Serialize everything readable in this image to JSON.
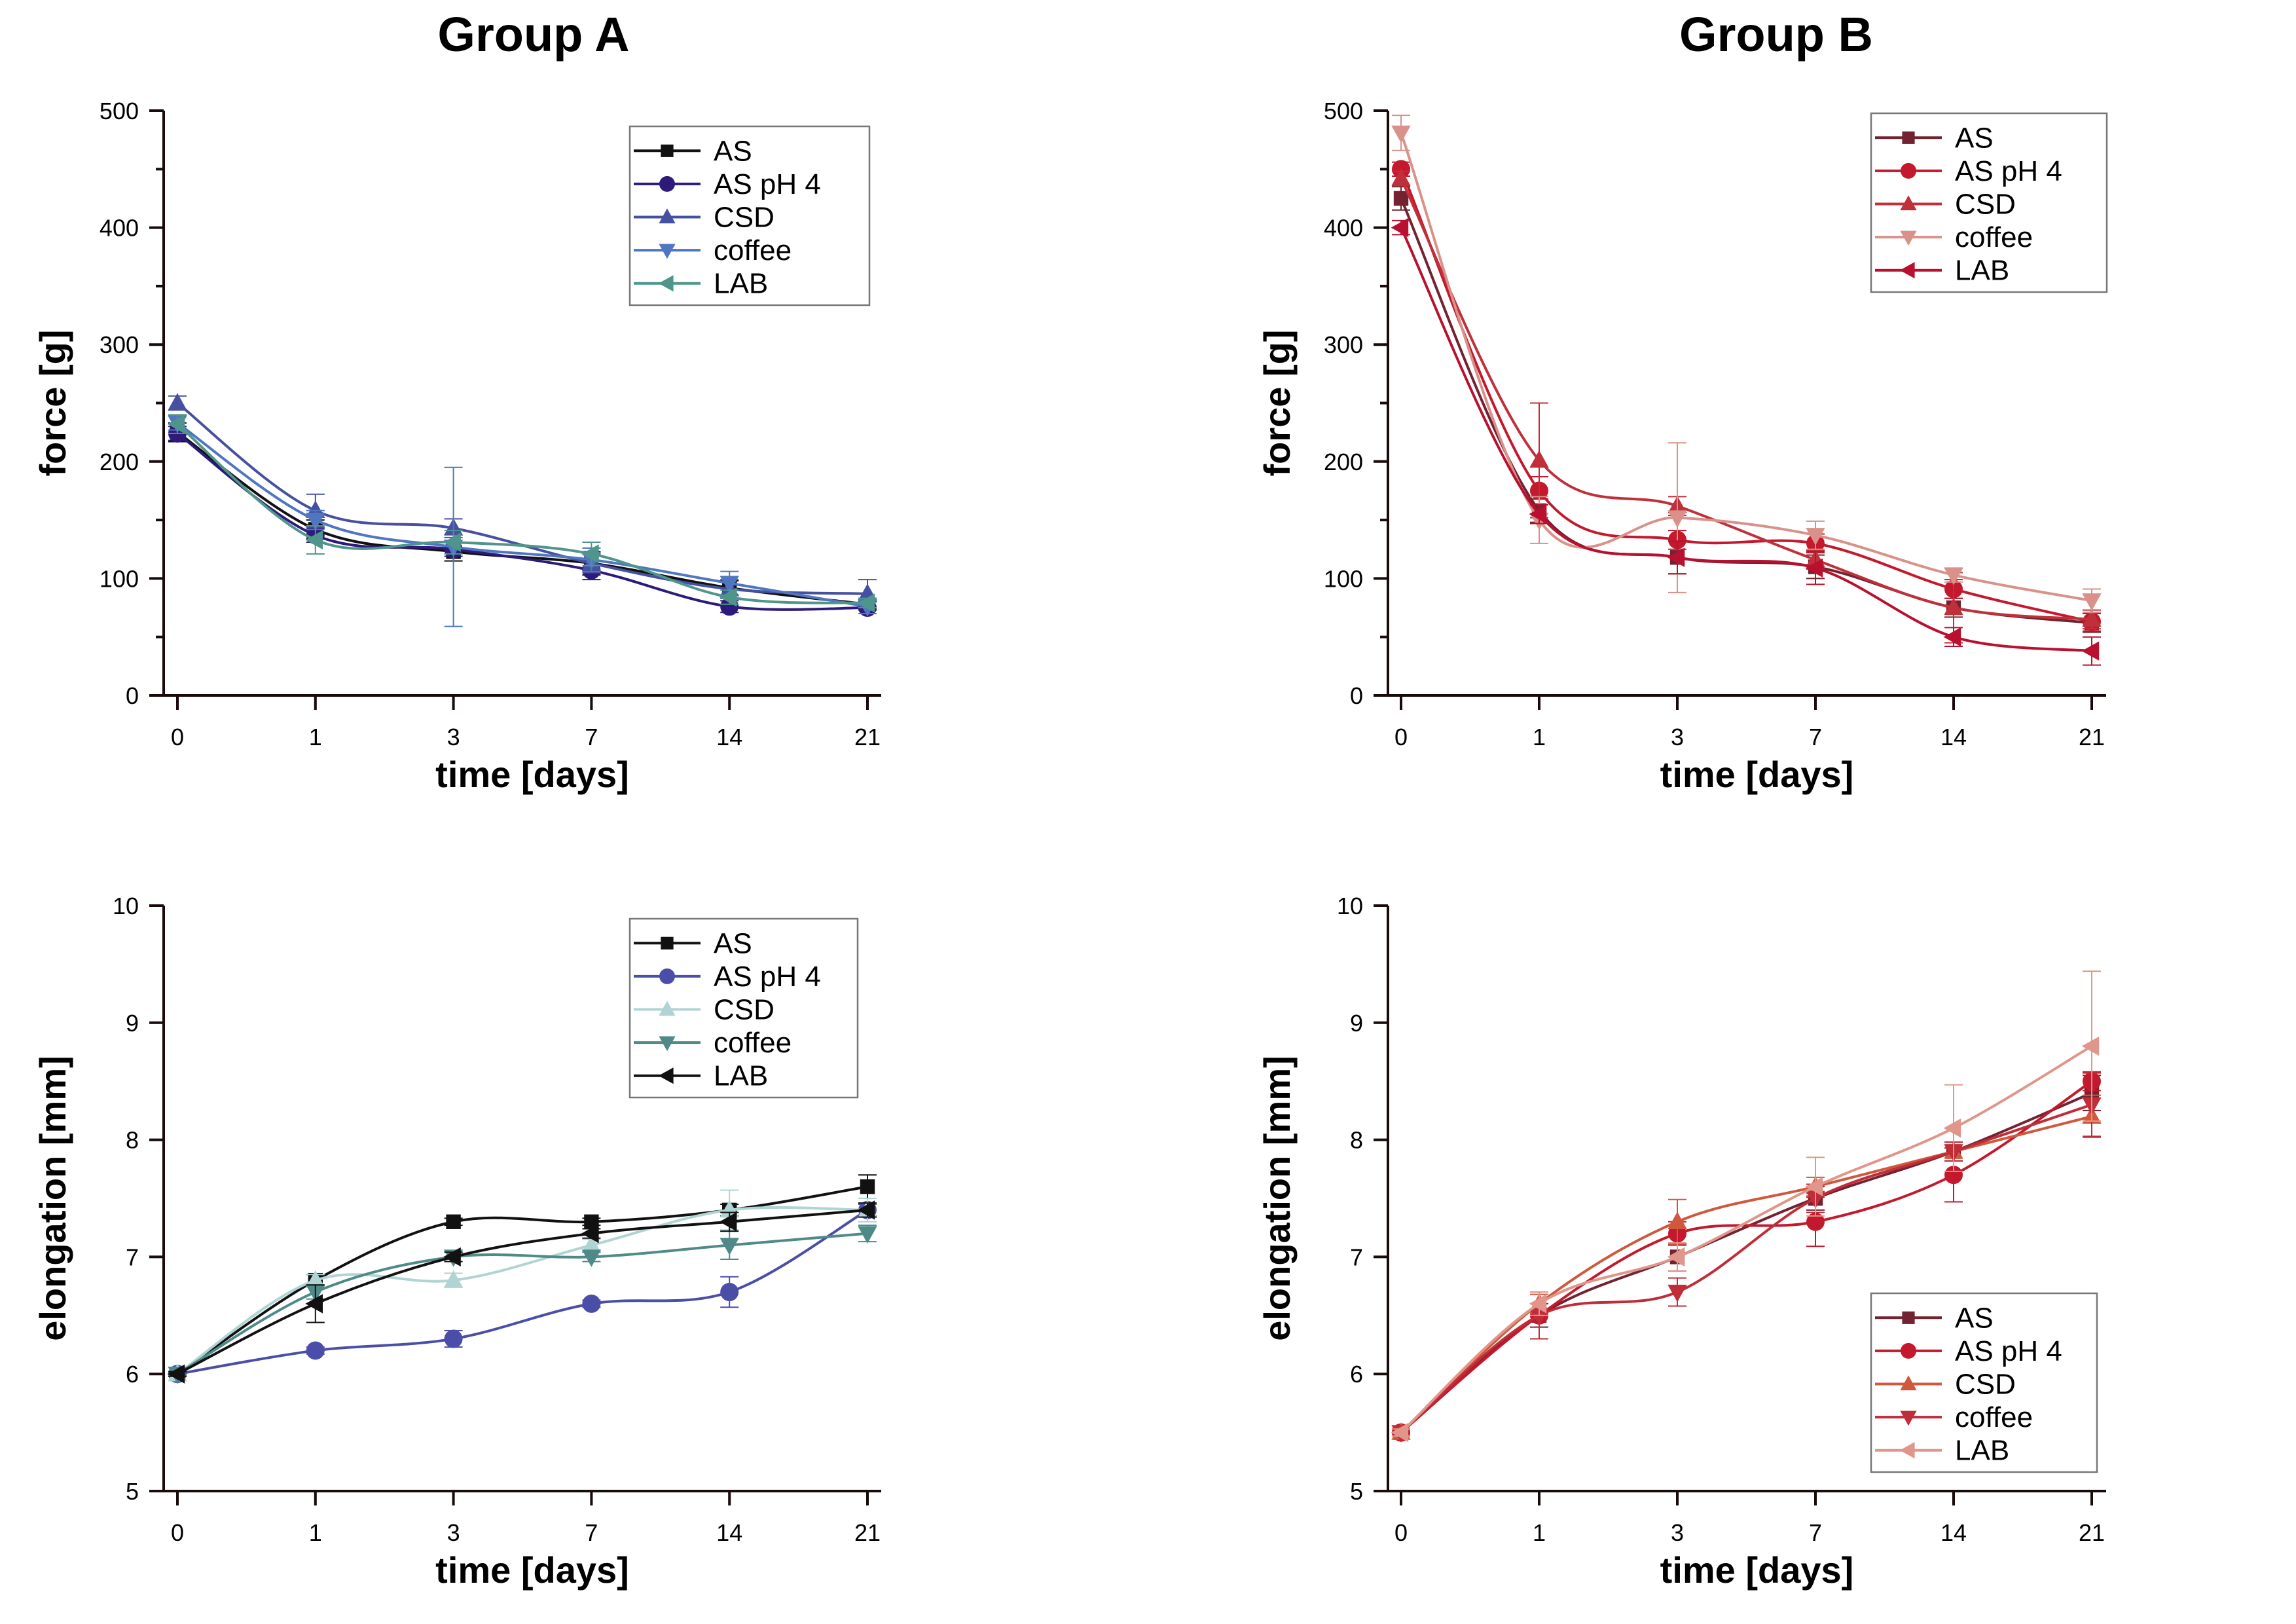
{
  "figure": {
    "group_titles": [
      "Group A",
      "Group B"
    ]
  },
  "chart_data": [
    {
      "id": "groupA-force",
      "group": "Group A",
      "type": "line",
      "title": "",
      "xlabel": "time [days]",
      "ylabel": "force [g]",
      "x": [
        "0",
        "1",
        "3",
        "7",
        "14",
        "21"
      ],
      "ylim": [
        0,
        500
      ],
      "yticks": [
        0,
        100,
        200,
        300,
        400,
        500
      ],
      "yminor_step": 50,
      "grid": false,
      "legend_position": "top-right",
      "series": [
        {
          "name": "AS",
          "marker": "square",
          "color": "#111111",
          "values": [
            225,
            142,
            123,
            113,
            92,
            78
          ],
          "err": [
            8,
            8,
            8,
            10,
            6,
            5
          ]
        },
        {
          "name": "AS pH 4",
          "marker": "circle",
          "color": "#2e1a7a",
          "values": [
            224,
            137,
            125,
            107,
            76,
            75
          ],
          "err": [
            6,
            6,
            6,
            8,
            5,
            5
          ]
        },
        {
          "name": "CSD",
          "marker": "triangle-up",
          "color": "#4650a0",
          "values": [
            250,
            158,
            143,
            113,
            91,
            87
          ],
          "err": [
            6,
            14,
            8,
            8,
            8,
            12
          ]
        },
        {
          "name": "coffee",
          "marker": "triangle-down",
          "color": "#4f76c0",
          "values": [
            233,
            150,
            127,
            116,
            96,
            76
          ],
          "err": [
            6,
            8,
            68,
            10,
            10,
            6
          ]
        },
        {
          "name": "LAB",
          "marker": "triangle-left",
          "color": "#4f958c",
          "values": [
            232,
            133,
            131,
            121,
            84,
            79
          ],
          "err": [
            8,
            12,
            10,
            10,
            6,
            4
          ]
        }
      ]
    },
    {
      "id": "groupB-force",
      "group": "Group B",
      "type": "line",
      "title": "",
      "xlabel": "time [days]",
      "ylabel": "force [g]",
      "x": [
        "0",
        "1",
        "3",
        "7",
        "14",
        "21"
      ],
      "ylim": [
        0,
        500
      ],
      "yticks": [
        0,
        100,
        200,
        300,
        400,
        500
      ],
      "yminor_step": 50,
      "grid": false,
      "legend_position": "top-right",
      "series": [
        {
          "name": "AS",
          "marker": "square",
          "color": "#722230",
          "values": [
            425,
            158,
            118,
            110,
            75,
            62
          ],
          "err": [
            10,
            10,
            14,
            10,
            8,
            8
          ]
        },
        {
          "name": "AS pH 4",
          "marker": "circle",
          "color": "#c4182c",
          "values": [
            450,
            175,
            133,
            130,
            91,
            63
          ],
          "err": [
            6,
            12,
            8,
            8,
            8,
            8
          ]
        },
        {
          "name": "CSD",
          "marker": "triangle-up",
          "color": "#c0303a",
          "values": [
            442,
            201,
            162,
            116,
            75,
            65
          ],
          "err": [
            6,
            49,
            8,
            8,
            30,
            8
          ]
        },
        {
          "name": "coffee",
          "marker": "triangle-down",
          "color": "#d9918a",
          "values": [
            481,
            150,
            152,
            137,
            103,
            81
          ],
          "err": [
            15,
            20,
            64,
            12,
            6,
            10
          ]
        },
        {
          "name": "LAB",
          "marker": "triangle-left",
          "color": "#b8102e",
          "values": [
            400,
            155,
            118,
            109,
            50,
            38
          ],
          "err": [
            6,
            8,
            14,
            14,
            8,
            12
          ]
        }
      ]
    },
    {
      "id": "groupA-elongation",
      "group": "Group A",
      "type": "line",
      "title": "",
      "xlabel": "time [days]",
      "ylabel": "elongation [mm]",
      "x": [
        "0",
        "1",
        "3",
        "7",
        "14",
        "21"
      ],
      "ylim": [
        5,
        10
      ],
      "yticks": [
        5,
        6,
        7,
        8,
        9,
        10
      ],
      "yminor_step": null,
      "grid": false,
      "legend_position": "top-right",
      "series": [
        {
          "name": "AS",
          "marker": "square",
          "color": "#111111",
          "values": [
            6.0,
            6.8,
            7.3,
            7.3,
            7.4,
            7.6
          ],
          "err": [
            0.02,
            0.05,
            0.03,
            0.03,
            0.05,
            0.1
          ]
        },
        {
          "name": "AS pH 4",
          "marker": "circle",
          "color": "#4a4ea8",
          "values": [
            6.0,
            6.2,
            6.3,
            6.6,
            6.7,
            7.4
          ],
          "err": [
            0.02,
            0.03,
            0.07,
            0.03,
            0.13,
            0.05
          ]
        },
        {
          "name": "CSD",
          "marker": "triangle-up",
          "color": "#b0d4d4",
          "values": [
            6.0,
            6.8,
            6.8,
            7.1,
            7.4,
            7.4
          ],
          "err": [
            0.02,
            0.05,
            0.06,
            0.05,
            0.17,
            0.1
          ]
        },
        {
          "name": "coffee",
          "marker": "triangle-down",
          "color": "#4f8a88",
          "values": [
            6.0,
            6.7,
            7.0,
            7.0,
            7.1,
            7.2
          ],
          "err": [
            0.02,
            0.06,
            0.04,
            0.04,
            0.12,
            0.07
          ]
        },
        {
          "name": "LAB",
          "marker": "triangle-left",
          "color": "#111111",
          "values": [
            6.0,
            6.6,
            7.0,
            7.2,
            7.3,
            7.4
          ],
          "err": [
            0.02,
            0.16,
            0.04,
            0.04,
            0.08,
            0.06
          ]
        }
      ]
    },
    {
      "id": "groupB-elongation",
      "group": "Group B",
      "type": "line",
      "title": "",
      "xlabel": "time [days]",
      "ylabel": "elongation [mm]",
      "x": [
        "0",
        "1",
        "3",
        "7",
        "14",
        "21"
      ],
      "ylim": [
        5,
        10
      ],
      "yticks": [
        5,
        6,
        7,
        8,
        9,
        10
      ],
      "yminor_step": null,
      "grid": false,
      "legend_position": "bottom-right",
      "series": [
        {
          "name": "AS",
          "marker": "square",
          "color": "#722230",
          "values": [
            5.5,
            6.5,
            7.0,
            7.5,
            7.9,
            8.4
          ],
          "err": [
            0.03,
            0.1,
            0.12,
            0.1,
            0.08,
            0.15
          ]
        },
        {
          "name": "AS pH 4",
          "marker": "circle",
          "color": "#c4182c",
          "values": [
            5.5,
            6.5,
            7.2,
            7.3,
            7.7,
            8.5
          ],
          "err": [
            0.03,
            0.2,
            0.1,
            0.21,
            0.23,
            0.08
          ]
        },
        {
          "name": "CSD",
          "marker": "triangle-up",
          "color": "#d0583c",
          "values": [
            5.5,
            6.6,
            7.3,
            7.6,
            7.9,
            8.2
          ],
          "err": [
            0.03,
            0.08,
            0.19,
            0.08,
            0.08,
            0.18
          ]
        },
        {
          "name": "coffee",
          "marker": "triangle-down",
          "color": "#c02c38",
          "values": [
            5.5,
            6.5,
            6.7,
            7.5,
            7.9,
            8.3
          ],
          "err": [
            0.03,
            0.2,
            0.12,
            0.12,
            0.08,
            0.27
          ]
        },
        {
          "name": "LAB",
          "marker": "triangle-left",
          "color": "#e0968a",
          "values": [
            5.5,
            6.6,
            7.0,
            7.6,
            8.1,
            8.8
          ],
          "err": [
            0.03,
            0.1,
            0.12,
            0.25,
            0.37,
            0.64
          ]
        }
      ]
    }
  ]
}
